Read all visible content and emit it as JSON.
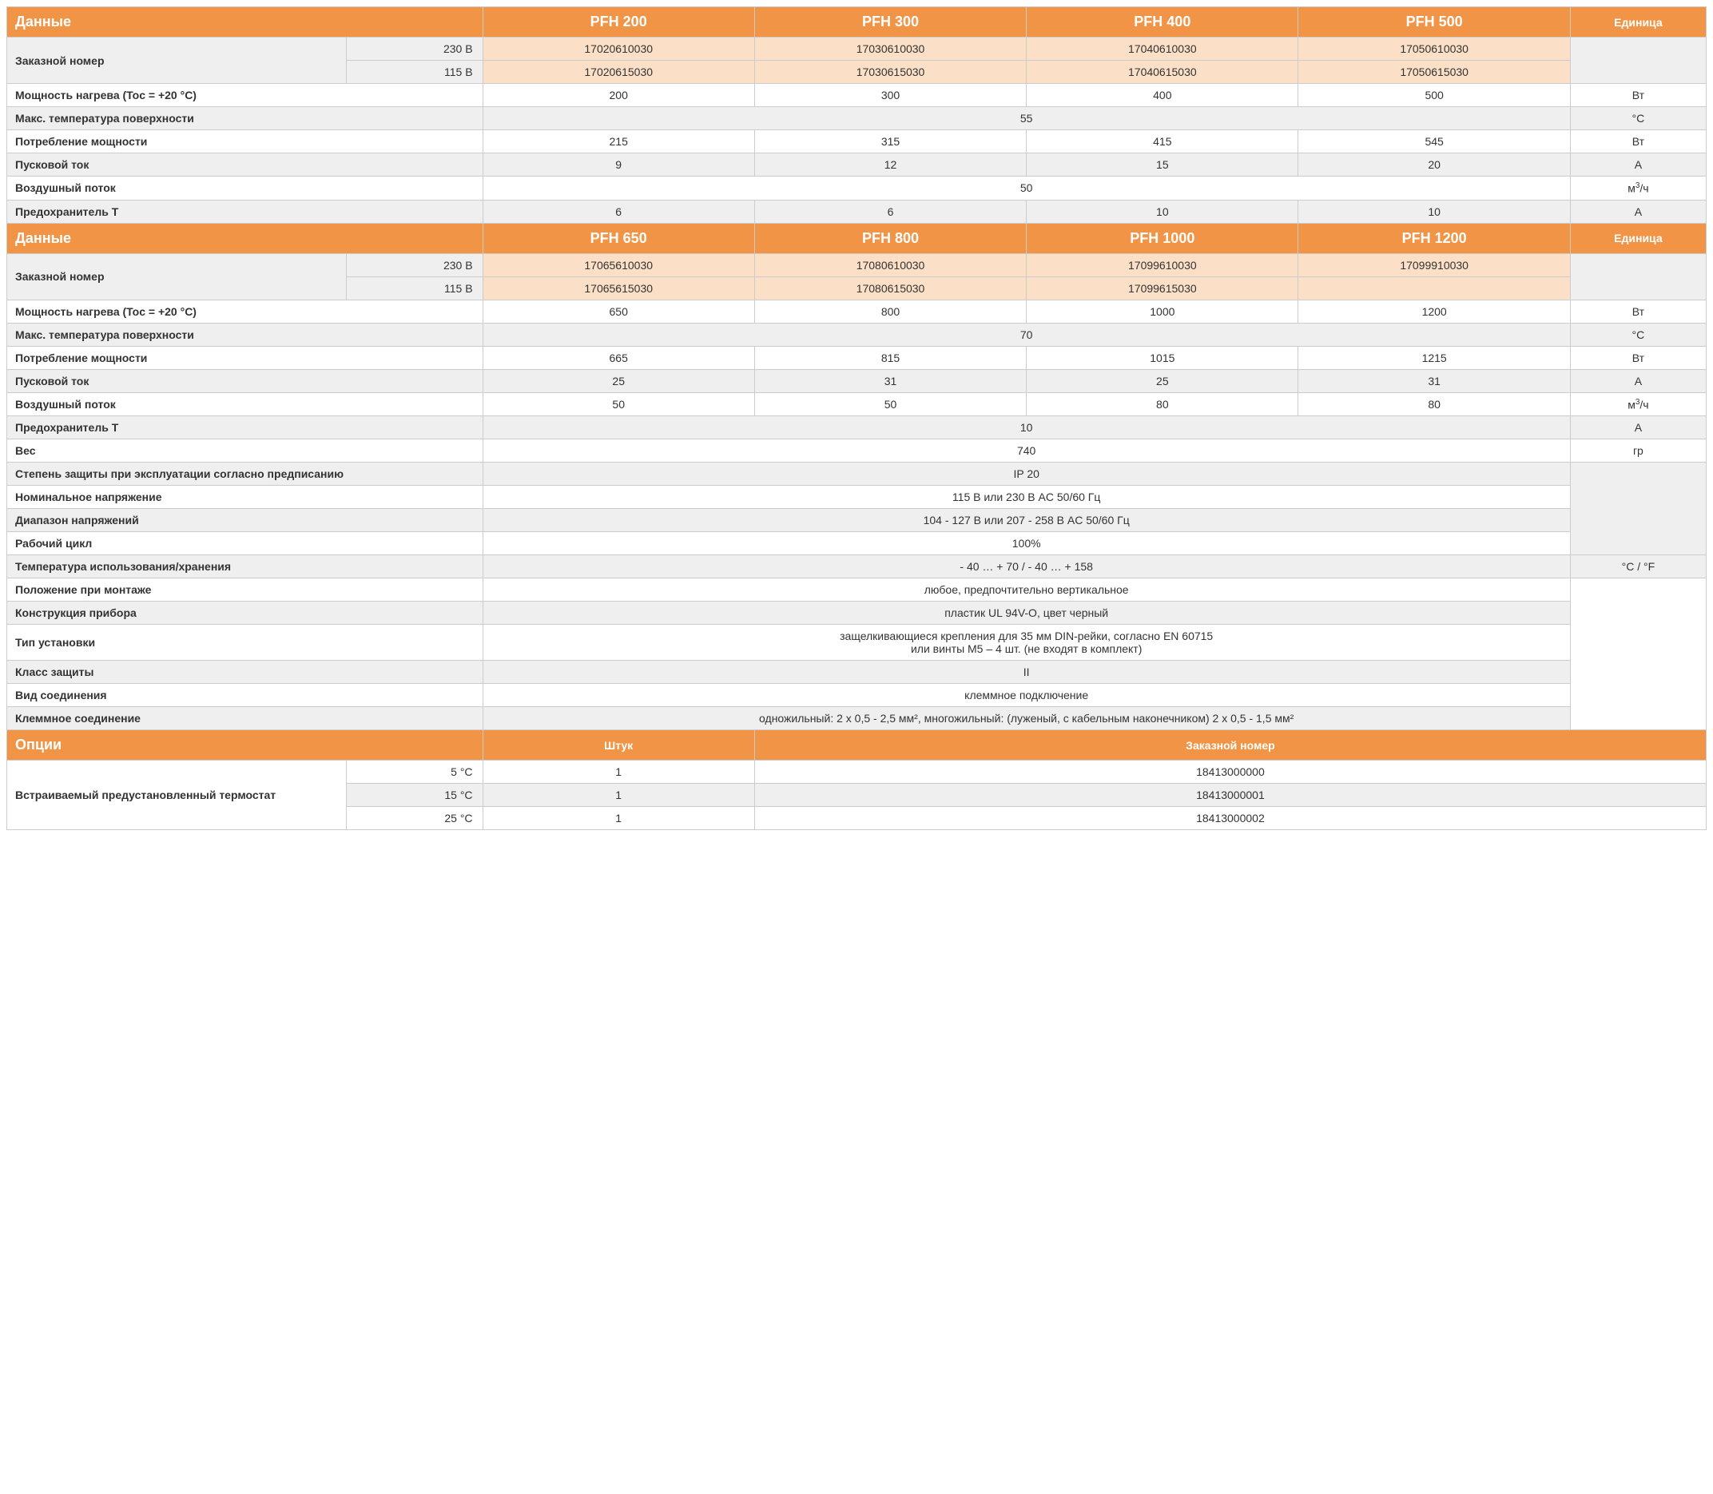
{
  "colors": {
    "header_bg": "#f29446",
    "header_fg": "#ffffff",
    "peach_bg": "#fbe0c7",
    "gray_bg": "#efefef",
    "border": "#cccccc"
  },
  "section1": {
    "title": "Данные",
    "models": [
      "PFH 200",
      "PFH 300",
      "PFH 400",
      "PFH 500"
    ],
    "unit_title": "Единица",
    "order_label": "Заказной номер",
    "v230": "230 В",
    "v115": "115 В",
    "order_230": [
      "17020610030",
      "17030610030",
      "17040610030",
      "17050610030"
    ],
    "order_115": [
      "17020615030",
      "17030615030",
      "17040615030",
      "17050615030"
    ],
    "rows": [
      {
        "label": "Мощность нагрева (Toc = +20 °C)",
        "vals": [
          "200",
          "300",
          "400",
          "500"
        ],
        "unit": "Вт",
        "merged": false,
        "gray": false
      },
      {
        "label": "Макс. температура поверхности",
        "vals": [
          "55"
        ],
        "unit": "°C",
        "merged": true,
        "gray": true
      },
      {
        "label": "Потребление мощности",
        "vals": [
          "215",
          "315",
          "415",
          "545"
        ],
        "unit": "Вт",
        "merged": false,
        "gray": false
      },
      {
        "label": "Пусковой ток",
        "vals": [
          "9",
          "12",
          "15",
          "20"
        ],
        "unit": "A",
        "merged": false,
        "gray": true
      },
      {
        "label": "Воздушный поток",
        "vals": [
          "50"
        ],
        "unit": "м³/ч",
        "merged": true,
        "gray": false
      },
      {
        "label": "Предохранитель T",
        "vals": [
          "6",
          "6",
          "10",
          "10"
        ],
        "unit": "A",
        "merged": false,
        "gray": true
      }
    ]
  },
  "section2": {
    "title": "Данные",
    "models": [
      "PFH 650",
      "PFH 800",
      "PFH 1000",
      "PFH 1200"
    ],
    "unit_title": "Единица",
    "order_label": "Заказной номер",
    "v230": "230 В",
    "v115": "115 В",
    "order_230": [
      "17065610030",
      "17080610030",
      "17099610030",
      "17099910030"
    ],
    "order_115": [
      "17065615030",
      "17080615030",
      "17099615030",
      ""
    ],
    "rows": [
      {
        "label": "Мощность нагрева (Toc = +20 °C)",
        "vals": [
          "650",
          "800",
          "1000",
          "1200"
        ],
        "unit": "Вт",
        "merged": false,
        "gray": false
      },
      {
        "label": "Макс. температура поверхности",
        "vals": [
          "70"
        ],
        "unit": "°C",
        "merged": true,
        "gray": true
      },
      {
        "label": "Потребление мощности",
        "vals": [
          "665",
          "815",
          "1015",
          "1215"
        ],
        "unit": "Вт",
        "merged": false,
        "gray": false
      },
      {
        "label": "Пусковой ток",
        "vals": [
          "25",
          "31",
          "25",
          "31"
        ],
        "unit": "A",
        "merged": false,
        "gray": true
      },
      {
        "label": "Воздушный поток",
        "vals": [
          "50",
          "50",
          "80",
          "80"
        ],
        "unit": "м³/ч",
        "merged": false,
        "gray": false
      },
      {
        "label": "Предохранитель T",
        "vals": [
          "10"
        ],
        "unit": "A",
        "merged": true,
        "gray": true
      },
      {
        "label": "Вес",
        "vals": [
          "740"
        ],
        "unit": "гр",
        "merged": true,
        "gray": false
      },
      {
        "label": "Степень защиты при эксплуатации согласно предписанию",
        "vals": [
          "IP 20"
        ],
        "unit": "",
        "merged": true,
        "gray": true,
        "unitspan_start": true,
        "unitspan_rows": 4
      },
      {
        "label": "Номинальное напряжение",
        "vals": [
          "115 В или 230 В AC 50/60 Гц"
        ],
        "unit": null,
        "merged": true,
        "gray": false
      },
      {
        "label": "Диапазон напряжений",
        "vals": [
          "104 - 127 В или 207 - 258 В AC 50/60 Гц"
        ],
        "unit": null,
        "merged": true,
        "gray": true
      },
      {
        "label": "Рабочий цикл",
        "vals": [
          "100%"
        ],
        "unit": null,
        "merged": true,
        "gray": false
      },
      {
        "label": "Температура использования/хранения",
        "vals": [
          "- 40 … + 70 / - 40 … + 158"
        ],
        "unit": "°C / °F",
        "merged": true,
        "gray": true
      },
      {
        "label": "Положение при монтаже",
        "vals": [
          "любое, предпочтительно вертикальное"
        ],
        "unit": "",
        "merged": true,
        "gray": false,
        "unitspan_start": true,
        "unitspan_rows": 6
      },
      {
        "label": "Конструкция прибора",
        "vals": [
          "пластик UL 94V-O, цвет черный"
        ],
        "unit": null,
        "merged": true,
        "gray": true
      },
      {
        "label": "Тип установки",
        "vals": [
          "защелкивающиеся крепления для 35 мм DIN-рейки, согласно EN 60715\nили винты M5 – 4 шт. (не входят в комплект)"
        ],
        "unit": null,
        "merged": true,
        "gray": false,
        "multiline": true
      },
      {
        "label": "Класс защиты",
        "vals": [
          "II"
        ],
        "unit": null,
        "merged": true,
        "gray": true
      },
      {
        "label": "Вид соединения",
        "vals": [
          "клеммное подключение"
        ],
        "unit": null,
        "merged": true,
        "gray": false
      },
      {
        "label": "Клеммное соединение",
        "vals": [
          "одножильный: 2 x 0,5 - 2,5 мм², многожильный: (луженый, с кабельным наконечником) 2 x 0,5 - 1,5 мм²"
        ],
        "unit": null,
        "merged": true,
        "gray": true
      }
    ]
  },
  "options": {
    "title": "Опции",
    "qty_title": "Штук",
    "order_title": "Заказной номер",
    "group_label": "Встраиваемый предустановленный термостат",
    "rows": [
      {
        "temp": "5 °C",
        "qty": "1",
        "order": "18413000000",
        "gray": false
      },
      {
        "temp": "15 °C",
        "qty": "1",
        "order": "18413000001",
        "gray": true
      },
      {
        "temp": "25 °C",
        "qty": "1",
        "order": "18413000002",
        "gray": false
      }
    ]
  }
}
